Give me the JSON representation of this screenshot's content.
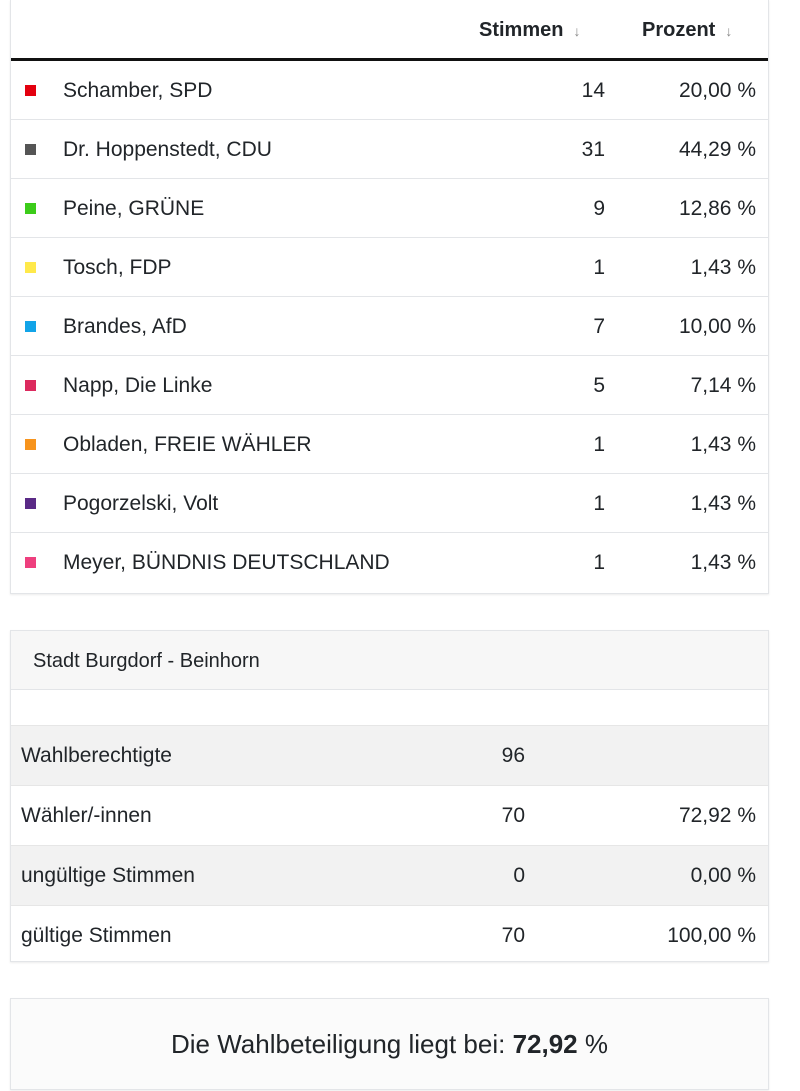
{
  "results": {
    "headers": {
      "votes": "Stimmen",
      "percent": "Prozent",
      "sort_icon": "↓"
    },
    "rows": [
      {
        "name": "Schamber, SPD",
        "votes": "14",
        "percent": "20,00 %",
        "color": "#e3000f"
      },
      {
        "name": "Dr. Hoppenstedt, CDU",
        "votes": "31",
        "percent": "44,29 %",
        "color": "#555555"
      },
      {
        "name": "Peine, GRÜNE",
        "votes": "9",
        "percent": "12,86 %",
        "color": "#3ccc1a"
      },
      {
        "name": "Tosch, FDP",
        "votes": "1",
        "percent": "1,43 %",
        "color": "#ffe94a"
      },
      {
        "name": "Brandes, AfD",
        "votes": "7",
        "percent": "10,00 %",
        "color": "#12a4e8"
      },
      {
        "name": "Napp, Die Linke",
        "votes": "5",
        "percent": "7,14 %",
        "color": "#dc2a5e"
      },
      {
        "name": "Obladen, FREIE WÄHLER",
        "votes": "1",
        "percent": "1,43 %",
        "color": "#f7941d"
      },
      {
        "name": "Pogorzelski, Volt",
        "votes": "1",
        "percent": "1,43 %",
        "color": "#5a2a86"
      },
      {
        "name": "Meyer, BÜNDNIS DEUTSCHLAND",
        "votes": "1",
        "percent": "1,43 %",
        "color": "#ee3f7e"
      }
    ]
  },
  "summary": {
    "title": "Stadt Burgdorf - Beinhorn",
    "rows": [
      {
        "label": "Wahlberechtigte",
        "value": "96",
        "percent": ""
      },
      {
        "label": "Wähler/-innen",
        "value": "70",
        "percent": "72,92 %"
      },
      {
        "label": "ungültige Stimmen",
        "value": "0",
        "percent": "0,00 %"
      },
      {
        "label": "gültige Stimmen",
        "value": "70",
        "percent": "100,00 %"
      }
    ]
  },
  "turnout": {
    "label": "Die Wahlbeteiligung liegt bei:",
    "value": "72,92",
    "unit": "%"
  }
}
